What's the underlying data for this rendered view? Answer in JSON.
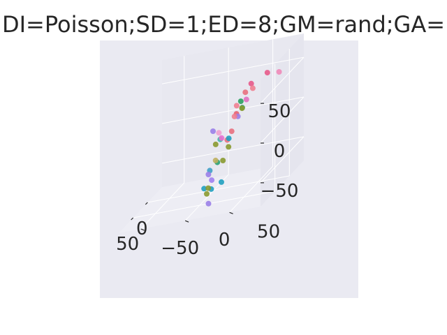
{
  "chart_data": {
    "type": "scatter",
    "projection": "3d",
    "title": "DI=Poisson;SD=1;ED=8;GM=rand;GA=",
    "xlim": [
      -50,
      100
    ],
    "ylim": [
      -75,
      85
    ],
    "zlim": [
      -80,
      80
    ],
    "x_ticks": [
      0,
      50
    ],
    "y_ticks": [
      -50,
      0,
      50
    ],
    "z_ticks": [
      -50,
      0,
      50
    ],
    "x_tick_labels": [
      "0",
      "50"
    ],
    "y_tick_labels": [
      "−50",
      "0",
      "50"
    ],
    "z_tick_labels": [
      "−50",
      "0",
      "50"
    ],
    "grid": true,
    "background": "#eaeaf2",
    "pane_colors": [
      "#e5e5ee",
      "#e8e8f0",
      "#ededf4"
    ],
    "grid_color": "#ffffff",
    "points": [
      {
        "x": 15,
        "y": 65,
        "z": 60,
        "color": "#e75a8a"
      },
      {
        "x": 5,
        "y": 75,
        "z": 55,
        "color": "#f08ab8"
      },
      {
        "x": 40,
        "y": 55,
        "z": 58,
        "color": "#e75a8a"
      },
      {
        "x": 45,
        "y": 50,
        "z": 50,
        "color": "#e8707e"
      },
      {
        "x": 50,
        "y": 60,
        "z": 55,
        "color": "#f08090"
      },
      {
        "x": 60,
        "y": 45,
        "z": 40,
        "color": "#f08090"
      },
      {
        "x": 30,
        "y": 40,
        "z": 35,
        "color": "#2aa060"
      },
      {
        "x": 25,
        "y": 40,
        "z": 25,
        "color": "#2aa060"
      },
      {
        "x": 45,
        "y": 40,
        "z": 25,
        "color": "#e86070"
      },
      {
        "x": 65,
        "y": 20,
        "z": 15,
        "color": "#9a80e8"
      },
      {
        "x": 60,
        "y": 25,
        "z": 10,
        "color": "#f0a0d0"
      },
      {
        "x": 25,
        "y": 35,
        "z": 15,
        "color": "#9a80e8"
      },
      {
        "x": -20,
        "y": 30,
        "z": 20,
        "color": "#e070c0"
      },
      {
        "x": -20,
        "y": 25,
        "z": 10,
        "color": "#8a9a30"
      },
      {
        "x": 40,
        "y": 20,
        "z": -5,
        "color": "#40b8a8"
      },
      {
        "x": -40,
        "y": 10,
        "z": -5,
        "color": "#f08090"
      },
      {
        "x": -15,
        "y": 15,
        "z": -15,
        "color": "#e8707e"
      },
      {
        "x": -15,
        "y": 10,
        "z": -25,
        "color": "#e8707e"
      },
      {
        "x": -5,
        "y": 15,
        "z": -20,
        "color": "#20a0c0"
      },
      {
        "x": 20,
        "y": 15,
        "z": -10,
        "color": "#e870d0"
      },
      {
        "x": 25,
        "y": 10,
        "z": -15,
        "color": "#8a9a30"
      },
      {
        "x": 50,
        "y": 20,
        "z": -30,
        "color": "#2aa070"
      },
      {
        "x": -50,
        "y": 0,
        "z": -45,
        "color": "#8a9a30"
      },
      {
        "x": 0,
        "y": 10,
        "z": -45,
        "color": "#8a9a30"
      },
      {
        "x": 10,
        "y": 5,
        "z": -40,
        "color": "#c0b060"
      },
      {
        "x": 30,
        "y": 5,
        "z": -45,
        "color": "#40a0c8"
      },
      {
        "x": 35,
        "y": 5,
        "z": -48,
        "color": "#9a80e8"
      },
      {
        "x": 85,
        "y": 25,
        "z": -40,
        "color": "#a080f0"
      },
      {
        "x": 50,
        "y": 5,
        "z": -60,
        "color": "#20a0c0"
      },
      {
        "x": -10,
        "y": 5,
        "z": -75,
        "color": "#20a0c0"
      },
      {
        "x": 10,
        "y": 0,
        "z": -75,
        "color": "#20a0c0"
      },
      {
        "x": 10,
        "y": -5,
        "z": -80,
        "color": "#8a9a30"
      },
      {
        "x": 20,
        "y": 0,
        "z": -70,
        "color": "#8a9a30"
      },
      {
        "x": 50,
        "y": 10,
        "z": -80,
        "color": "#9a80e8"
      }
    ]
  }
}
